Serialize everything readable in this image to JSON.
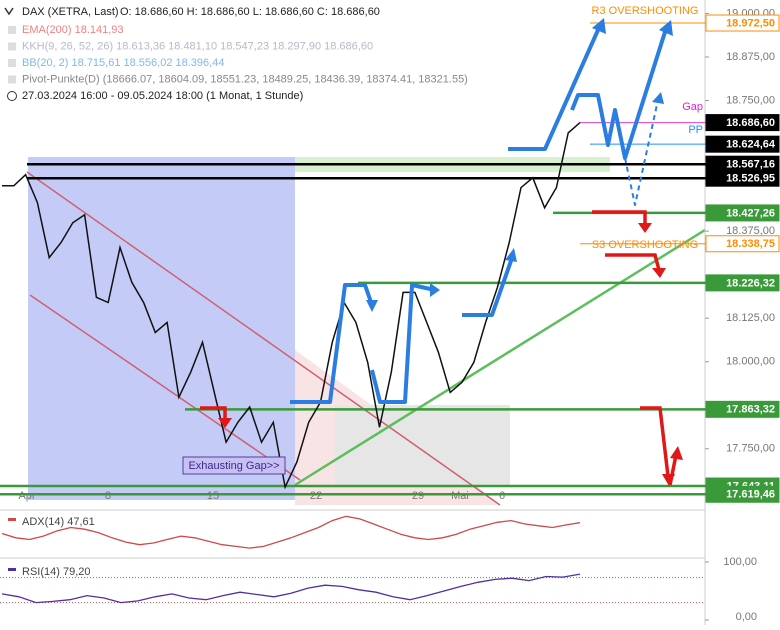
{
  "chart_data": [
    {
      "type": "line",
      "title": "DAX (XETRA, Last)",
      "ohlc": "O: 18.686,60   H: 18.686,60   L: 18.686,60   C: 18.686,60",
      "info": [
        {
          "text": "EMA(200)  18.141,93",
          "color": "#f08080"
        },
        {
          "text": "KKH(9, 26, 52, 26)  18.613,36  18.481,10  18.547,23  18.297,90  18.686,60",
          "color": "#b8b8c8"
        },
        {
          "text": "BB(20, 2)  18.715,61  18.556,02  18.396,44",
          "color": "#80b8e8"
        },
        {
          "text": "Pivot-Punkte(D)  (18666.07, 18604.09, 18551.23, 18489.25, 18436.39, 18374.41, 18321.55)",
          "color": "#888888"
        },
        {
          "text": "27.03.2024 16:00 - 09.05.2024 18:00  (1 Monat, 1 Stunde)",
          "color": "#222222"
        }
      ],
      "color": "#111111",
      "values": [
        18505,
        18505,
        18537,
        18457,
        18299,
        18342,
        18399,
        18422,
        18185,
        18170,
        18328,
        18228,
        18170,
        18084,
        18113,
        17898,
        17970,
        18056,
        17912,
        17769,
        17826,
        17870,
        17769,
        17826,
        17640,
        17712,
        17826,
        17884,
        18056,
        18170,
        18113,
        17998,
        17812,
        17970,
        18199,
        18199,
        18113,
        18027,
        17912,
        17941,
        17998,
        18113,
        18213,
        18342,
        18500,
        18528,
        18442,
        18500,
        18657,
        18686.6
      ],
      "ylim": [
        17580,
        19030
      ],
      "yticks": [
        {
          "value": 19000,
          "label": "19.000,00"
        },
        {
          "value": 18875,
          "label": "18.875,00"
        },
        {
          "value": 18750,
          "label": "18.750,00"
        },
        {
          "value": 18375,
          "label": "18.375,00"
        },
        {
          "value": 18125,
          "label": "18.125,00"
        },
        {
          "value": 18000,
          "label": "18.000,00"
        },
        {
          "value": 17750,
          "label": "17.750,00"
        }
      ],
      "xtick_labels": [
        "Apr",
        "8",
        "15",
        "22",
        "29",
        "Mai",
        "6"
      ],
      "levels": [
        {
          "value": 18972.5,
          "label": "18.972,50",
          "color": "#ff8c00",
          "box": "outline"
        },
        {
          "value": 18686.6,
          "label": "18.686,60",
          "color": "#e040e0",
          "box": "filled"
        },
        {
          "value": 18624.64,
          "label": "18.624,64",
          "color": "#1e90ff",
          "box": "filled"
        },
        {
          "value": 18567.16,
          "label": "18.567,16",
          "color": "#000000",
          "box": "filled"
        },
        {
          "value": 18526.95,
          "label": "18.526,95",
          "color": "#000000",
          "box": "filled"
        },
        {
          "value": 18427.26,
          "label": "18.427,26",
          "color": "#3a9a3a",
          "box": "filled"
        },
        {
          "value": 18338.75,
          "label": "18.338,75",
          "color": "#ff8c00",
          "box": "outline"
        },
        {
          "value": 18226.32,
          "label": "18.226,32",
          "color": "#3a9a3a",
          "box": "filled"
        },
        {
          "value": 17863.32,
          "label": "17.863,32",
          "color": "#3a9a3a",
          "box": "filled"
        },
        {
          "value": 17643.11,
          "label": "17.643,11",
          "color": "#3a9a3a",
          "box": "filled"
        },
        {
          "value": 17619.46,
          "label": "17.619,46",
          "color": "#3a9a3a",
          "box": "filled"
        }
      ],
      "annotations": [
        {
          "text": "R3 OVERSHOOTING",
          "color": "#ff8c00"
        },
        {
          "text": "S3 OVERSHOOTING",
          "color": "#ff8c00"
        },
        {
          "text": "Gap",
          "color": "#e020e0"
        },
        {
          "text": "PP",
          "color": "#1e90ff"
        },
        {
          "text": "Exhausting Gap>>",
          "color": "#3a2a90"
        }
      ]
    },
    {
      "type": "line",
      "title": "ADX(14)  47,61",
      "color": "#d04848",
      "ylim": [
        10,
        60
      ],
      "values": [
        35,
        30,
        28,
        32,
        38,
        42,
        40,
        36,
        30,
        25,
        22,
        24,
        28,
        32,
        30,
        26,
        22,
        20,
        18,
        20,
        25,
        30,
        36,
        42,
        50,
        55,
        52,
        46,
        40,
        34,
        30,
        28,
        30,
        34,
        40,
        44,
        48,
        50,
        46,
        44,
        42,
        45,
        47.61
      ]
    },
    {
      "type": "line",
      "title": "RSI(14)  79,20",
      "color": "#5030a0",
      "ylim": [
        0,
        100
      ],
      "yticks": [
        {
          "value": 100,
          "label": "100,00"
        },
        {
          "value": 0,
          "label": "0,00"
        }
      ],
      "values": [
        45,
        40,
        30,
        32,
        35,
        42,
        38,
        30,
        33,
        40,
        45,
        38,
        35,
        42,
        48,
        44,
        40,
        46,
        55,
        60,
        58,
        52,
        48,
        40,
        35,
        42,
        50,
        58,
        65,
        70,
        72,
        68,
        75,
        74,
        79.2
      ]
    }
  ]
}
